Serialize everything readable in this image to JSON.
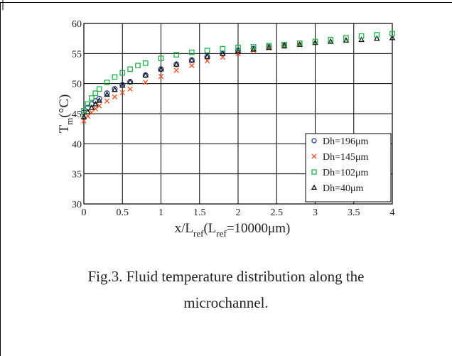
{
  "caption": {
    "line1": "Fig.3. Fluid temperature distribution along the",
    "line2": "microchannel."
  },
  "chart_data": {
    "type": "scatter",
    "xlabel": {
      "main": "x/L",
      "sub": "ref",
      "paren_open": "(L",
      "sub2": "ref",
      "rest": "=10000μm)"
    },
    "ylabel": {
      "main": "T",
      "sub": "m",
      "rest": "(°C)"
    },
    "xlim": [
      0,
      4
    ],
    "ylim": [
      30,
      60
    ],
    "x_ticks": [
      0,
      0.5,
      1,
      1.5,
      2,
      2.5,
      3,
      3.5,
      4
    ],
    "x_tick_labels": [
      "0",
      "0.5",
      "1",
      "1.5",
      "2",
      "2.5",
      "3",
      "3.5",
      "4"
    ],
    "y_ticks": [
      30,
      35,
      40,
      45,
      50,
      55,
      60
    ],
    "y_tick_labels": [
      "30",
      "35",
      "40",
      "45",
      "50",
      "55",
      "60"
    ],
    "grid": true,
    "legend_position": "bottom-right",
    "series": [
      {
        "name": "Dh=196μm",
        "marker": "circle",
        "color": "#2a3f8f",
        "x": [
          0,
          0.05,
          0.1,
          0.15,
          0.2,
          0.3,
          0.4,
          0.5,
          0.6,
          0.8,
          1.0,
          1.2,
          1.4,
          1.6,
          1.8,
          2.0,
          2.2,
          2.4,
          2.6
        ],
        "y": [
          45.2,
          46.0,
          46.6,
          47.1,
          47.5,
          48.4,
          49.1,
          49.8,
          50.3,
          51.4,
          52.4,
          53.2,
          53.9,
          54.5,
          55.0,
          55.5,
          55.8,
          56.1,
          56.3
        ]
      },
      {
        "name": "Dh=145μm",
        "marker": "x",
        "color": "#f05a28",
        "x": [
          0,
          0.05,
          0.1,
          0.15,
          0.2,
          0.3,
          0.4,
          0.5,
          0.6,
          0.8,
          1.0,
          1.2,
          1.4,
          1.6,
          1.8,
          2.0,
          2.2,
          2.4,
          2.6,
          2.8
        ],
        "y": [
          43.8,
          44.6,
          45.2,
          45.8,
          46.3,
          47.1,
          47.8,
          48.5,
          49.1,
          50.2,
          51.2,
          52.2,
          53.0,
          53.8,
          54.4,
          55.0,
          55.5,
          55.9,
          56.2,
          56.5
        ]
      },
      {
        "name": "Dh=102μm",
        "marker": "square",
        "color": "#22b24c",
        "x": [
          0,
          0.05,
          0.1,
          0.15,
          0.2,
          0.3,
          0.4,
          0.5,
          0.6,
          0.7,
          0.8,
          1.0,
          1.2,
          1.4,
          1.6,
          1.8,
          2.0,
          2.2,
          2.4,
          2.6,
          2.8,
          3.0,
          3.2,
          3.4,
          3.6,
          3.8,
          4.0
        ],
        "y": [
          45.5,
          46.6,
          47.6,
          48.4,
          49.1,
          50.2,
          51.1,
          51.8,
          52.4,
          53.0,
          53.4,
          54.2,
          54.8,
          55.2,
          55.5,
          55.8,
          56.0,
          56.1,
          56.3,
          56.5,
          56.7,
          57.0,
          57.3,
          57.6,
          57.9,
          58.1,
          58.3
        ]
      },
      {
        "name": "Dh=40μm",
        "marker": "triangle",
        "color": "#111111",
        "x": [
          0,
          0.05,
          0.1,
          0.15,
          0.2,
          0.3,
          0.4,
          0.5,
          0.6,
          0.8,
          1.0,
          1.2,
          1.4,
          1.6,
          1.8,
          2.0,
          2.2,
          2.4,
          2.6,
          2.8,
          3.0,
          3.2,
          3.4,
          3.6,
          3.8,
          4.0
        ],
        "y": [
          44.5,
          45.3,
          46.0,
          46.6,
          47.2,
          48.2,
          49.0,
          49.7,
          50.3,
          51.4,
          52.4,
          53.2,
          53.9,
          54.5,
          55.0,
          55.4,
          55.7,
          56.0,
          56.3,
          56.5,
          56.8,
          57.0,
          57.2,
          57.3,
          57.5,
          57.6
        ]
      }
    ]
  }
}
